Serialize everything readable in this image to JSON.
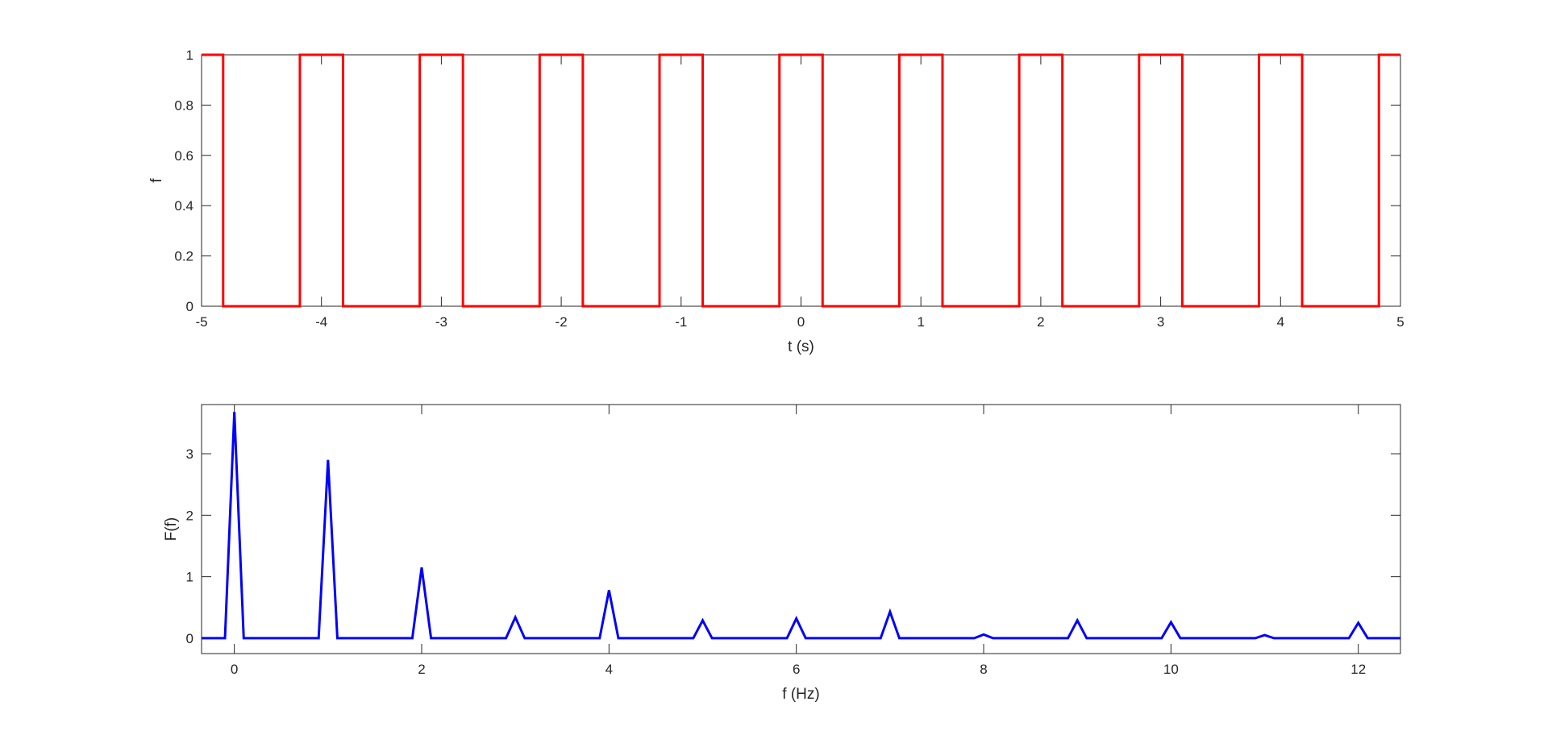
{
  "chart_data": [
    {
      "type": "line",
      "title": "",
      "xlabel": "t (s)",
      "ylabel": "f",
      "xlim": [
        -5,
        5
      ],
      "ylim": [
        0,
        1
      ],
      "xticks": [
        "-5",
        "-4",
        "-3",
        "-2",
        "-1",
        "0",
        "1",
        "2",
        "3",
        "4",
        "5"
      ],
      "yticks": [
        "0",
        "0.2",
        "0.4",
        "0.6",
        "0.8",
        "1"
      ],
      "grid": false,
      "color": "#ff0000",
      "series": [
        {
          "x": [
            -5,
            -4.82,
            -4.82,
            -4.18,
            -4.18,
            -3.82,
            -3.82,
            -3.18,
            -3.18,
            -2.82,
            -2.82,
            -2.18,
            -2.18,
            -1.82,
            -1.82,
            -1.18,
            -1.18,
            -0.82,
            -0.82,
            -0.18,
            -0.18,
            0.18,
            0.18,
            0.82,
            0.82,
            1.18,
            1.18,
            1.82,
            1.82,
            2.18,
            2.18,
            2.82,
            2.82,
            3.18,
            3.18,
            3.82,
            3.82,
            4.18,
            4.18,
            4.82,
            4.82,
            5
          ],
          "y": [
            1,
            1,
            0,
            0,
            1,
            1,
            0,
            0,
            1,
            1,
            0,
            0,
            1,
            1,
            0,
            0,
            1,
            1,
            0,
            0,
            1,
            1,
            0,
            0,
            1,
            1,
            0,
            0,
            1,
            1,
            0,
            0,
            1,
            1,
            0,
            0,
            1,
            1,
            0,
            0,
            1,
            1
          ]
        }
      ]
    },
    {
      "type": "line",
      "title": "",
      "xlabel": "f (Hz)",
      "ylabel": "F(f)",
      "xlim": [
        -0.35,
        12.45
      ],
      "ylim": [
        -0.25,
        3.8
      ],
      "xticks": [
        "0",
        "2",
        "4",
        "6",
        "8",
        "10",
        "12"
      ],
      "yticks": [
        "0",
        "1",
        "2",
        "3"
      ],
      "grid": false,
      "color": "#0000ff",
      "series": [
        {
          "x": [
            -0.35,
            -0.1,
            0,
            0.1,
            0.9,
            1,
            1.1,
            1.9,
            2,
            2.1,
            2.9,
            3,
            3.1,
            3.9,
            4,
            4.1,
            4.9,
            5,
            5.1,
            5.9,
            6,
            6.1,
            6.9,
            7,
            7.1,
            7.9,
            8,
            8.1,
            8.9,
            9,
            9.1,
            9.9,
            10,
            10.1,
            10.9,
            11,
            11.1,
            11.9,
            12,
            12.1,
            12.45
          ],
          "y": [
            0,
            0,
            3.68,
            0,
            0,
            2.9,
            0,
            0,
            1.15,
            0,
            0,
            0.34,
            0,
            0,
            0.78,
            0,
            0,
            0.29,
            0,
            0,
            0.32,
            0,
            0,
            0.43,
            0,
            0,
            0.06,
            0,
            0,
            0.29,
            0,
            0,
            0.26,
            0,
            0,
            0.05,
            0,
            0,
            0.25,
            0,
            0
          ]
        }
      ]
    }
  ]
}
